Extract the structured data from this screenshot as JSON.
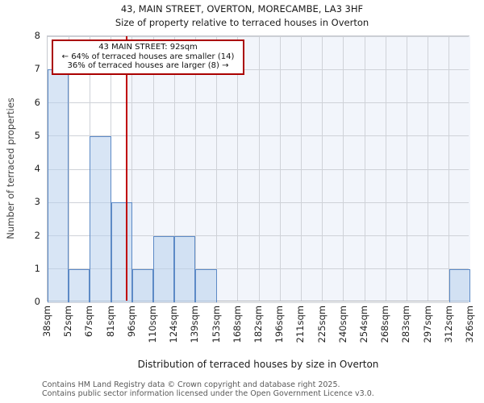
{
  "title": "43, MAIN STREET, OVERTON, MORECAMBE, LA3 3HF",
  "subtitle": "Size of property relative to terraced houses in Overton",
  "annotation": {
    "line1": "43 MAIN STREET: 92sqm",
    "line2": "← 64% of terraced houses are smaller (14)",
    "line3": "36% of terraced houses are larger (8) →"
  },
  "chart_data": {
    "type": "bar",
    "title": "43, MAIN STREET, OVERTON, MORECAMBE, LA3 3HF",
    "subtitle": "Size of property relative to terraced houses in Overton",
    "xlabel": "Distribution of terraced houses by size in Overton",
    "ylabel": "Number of terraced properties",
    "ylim": [
      0,
      8
    ],
    "yticks": [
      0,
      1,
      2,
      3,
      4,
      5,
      6,
      7,
      8
    ],
    "x_tick_labels": [
      "38sqm",
      "52sqm",
      "67sqm",
      "81sqm",
      "96sqm",
      "110sqm",
      "124sqm",
      "139sqm",
      "153sqm",
      "168sqm",
      "182sqm",
      "196sqm",
      "211sqm",
      "225sqm",
      "240sqm",
      "254sqm",
      "268sqm",
      "283sqm",
      "297sqm",
      "312sqm",
      "326sqm"
    ],
    "xmin_sqm": 38,
    "xmax_sqm": 326,
    "values": [
      7,
      1,
      5,
      3,
      1,
      2,
      2,
      1,
      0,
      0,
      0,
      0,
      0,
      0,
      0,
      0,
      0,
      0,
      0,
      1
    ],
    "marker_value_sqm": 92,
    "grid": true,
    "legend": "none",
    "colors": {
      "bar_fill": "rgba(184,208,236,0.55)",
      "bar_edge": "#5d8ac6",
      "marker_line": "#c00000",
      "annotation_border": "#aa0000",
      "band_fill": "#f2f5fb",
      "grid": "#cfd2d8"
    }
  },
  "footer": {
    "line1": "Contains HM Land Registry data © Crown copyright and database right 2025.",
    "line2": "Contains public sector information licensed under the Open Government Licence v3.0."
  }
}
